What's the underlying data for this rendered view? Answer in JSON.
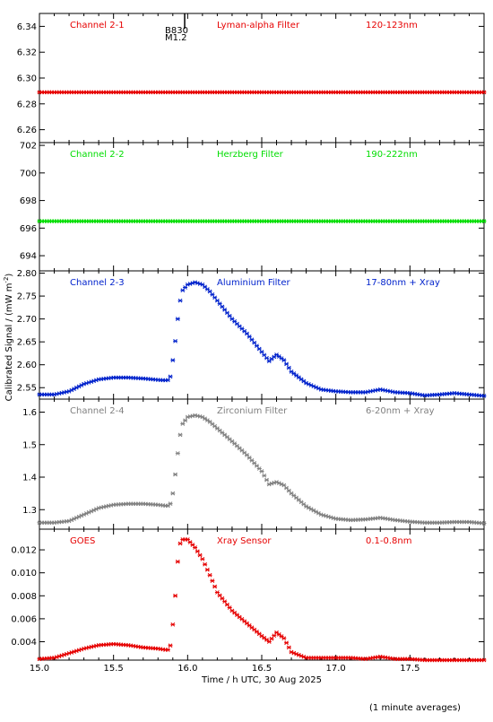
{
  "figure": {
    "ylabel": "Calibrated Signal / (mW m",
    "ylabel_sup": "-2",
    "ylabel_close": ")",
    "xlabel": "Time / h UTC, 30 Aug 2025",
    "footnote": "(1 minute averages)",
    "marker": {
      "label1": "B830",
      "label2": "M1.2",
      "time": 15.98
    }
  },
  "chart_data": [
    {
      "type": "scatter",
      "channel": "Channel 2-1",
      "filter": "Lyman-alpha Filter",
      "band": "120-123nm",
      "color": "#e60000",
      "xlim": [
        15.0,
        18.0
      ],
      "ylim": [
        6.25,
        6.35
      ],
      "yticks": [
        "6.26",
        "6.28",
        "6.30",
        "6.32",
        "6.34"
      ],
      "series": [
        {
          "x": [
            15.0,
            18.0
          ],
          "y": [
            6.289,
            6.289
          ]
        }
      ]
    },
    {
      "type": "scatter",
      "channel": "Channel 2-2",
      "filter": "Herzberg Filter",
      "band": "190-222nm",
      "color": "#00dd00",
      "xlim": [
        15.0,
        18.0
      ],
      "ylim": [
        692.9,
        702.2
      ],
      "yticks": [
        "694",
        "696",
        "698",
        "700",
        "702"
      ],
      "series": [
        {
          "x": [
            15.0,
            18.0
          ],
          "y": [
            696.5,
            696.5
          ]
        }
      ]
    },
    {
      "type": "scatter",
      "channel": "Channel 2-3",
      "filter": "Aluminium Filter",
      "band": "17-80nm + Xray",
      "color": "#0022cc",
      "xlim": [
        15.0,
        18.0
      ],
      "ylim": [
        2.525,
        2.805
      ],
      "yticks": [
        "2.55",
        "2.60",
        "2.65",
        "2.70",
        "2.75",
        "2.80"
      ],
      "series": [
        {
          "x": [
            15.0,
            15.1,
            15.2,
            15.3,
            15.4,
            15.5,
            15.6,
            15.7,
            15.8,
            15.85,
            15.88,
            15.9,
            15.92,
            15.94,
            15.96,
            16.0,
            16.05,
            16.1,
            16.15,
            16.2,
            16.3,
            16.4,
            16.5,
            16.55,
            16.6,
            16.65,
            16.7,
            16.8,
            16.9,
            17.0,
            17.1,
            17.2,
            17.3,
            17.4,
            17.5,
            17.6,
            17.7,
            17.8,
            17.9,
            18.0
          ],
          "y": [
            2.535,
            2.535,
            2.542,
            2.558,
            2.568,
            2.572,
            2.572,
            2.57,
            2.567,
            2.566,
            2.567,
            2.61,
            2.66,
            2.72,
            2.76,
            2.775,
            2.78,
            2.775,
            2.76,
            2.74,
            2.7,
            2.668,
            2.628,
            2.608,
            2.622,
            2.61,
            2.585,
            2.56,
            2.546,
            2.542,
            2.54,
            2.54,
            2.546,
            2.54,
            2.538,
            2.533,
            2.535,
            2.538,
            2.535,
            2.532
          ]
        }
      ]
    },
    {
      "type": "scatter",
      "channel": "Channel 2-4",
      "filter": "Zirconium Filter",
      "band": "6-20nm + Xray",
      "color": "#808080",
      "xlim": [
        15.0,
        18.0
      ],
      "ylim": [
        1.24,
        1.64
      ],
      "yticks": [
        "1.3",
        "1.4",
        "1.5",
        "1.6"
      ],
      "series": [
        {
          "x": [
            15.0,
            15.1,
            15.2,
            15.3,
            15.4,
            15.5,
            15.6,
            15.7,
            15.8,
            15.85,
            15.88,
            15.9,
            15.92,
            15.94,
            15.96,
            16.0,
            16.05,
            16.1,
            16.15,
            16.2,
            16.3,
            16.4,
            16.5,
            16.55,
            16.6,
            16.65,
            16.7,
            16.8,
            16.9,
            17.0,
            17.1,
            17.2,
            17.3,
            17.4,
            17.5,
            17.6,
            17.7,
            17.8,
            17.9,
            18.0
          ],
          "y": [
            1.26,
            1.26,
            1.265,
            1.285,
            1.305,
            1.315,
            1.318,
            1.318,
            1.315,
            1.312,
            1.312,
            1.35,
            1.42,
            1.5,
            1.56,
            1.585,
            1.59,
            1.585,
            1.57,
            1.55,
            1.51,
            1.468,
            1.418,
            1.378,
            1.385,
            1.375,
            1.35,
            1.31,
            1.285,
            1.272,
            1.268,
            1.27,
            1.275,
            1.268,
            1.263,
            1.26,
            1.26,
            1.262,
            1.262,
            1.258
          ]
        }
      ]
    },
    {
      "type": "scatter",
      "channel": "GOES",
      "filter": "Xray Sensor",
      "band": "0.1-0.8nm",
      "color": "#e60000",
      "xlim": [
        15.0,
        18.0
      ],
      "ylim": [
        0.0024,
        0.0138
      ],
      "yticks": [
        "0.004",
        "0.006",
        "0.008",
        "0.010",
        "0.012"
      ],
      "xticks": [
        "15.0",
        "15.5",
        "16.0",
        "16.5",
        "17.0",
        "17.5"
      ],
      "series": [
        {
          "x": [
            15.0,
            15.1,
            15.2,
            15.3,
            15.4,
            15.5,
            15.6,
            15.7,
            15.8,
            15.85,
            15.88,
            15.9,
            15.92,
            15.94,
            15.96,
            16.0,
            16.05,
            16.1,
            16.15,
            16.2,
            16.3,
            16.4,
            16.5,
            16.55,
            16.6,
            16.65,
            16.7,
            16.8,
            16.9,
            17.0,
            17.1,
            17.2,
            17.3,
            17.4,
            17.5,
            17.6,
            17.7,
            17.8,
            17.9,
            18.0
          ],
          "y": [
            0.0025,
            0.0026,
            0.003,
            0.0034,
            0.0037,
            0.0038,
            0.0037,
            0.0035,
            0.0034,
            0.0033,
            0.0033,
            0.0055,
            0.0085,
            0.0122,
            0.0129,
            0.0129,
            0.0122,
            0.0112,
            0.0098,
            0.0083,
            0.0067,
            0.0056,
            0.0045,
            0.004,
            0.0048,
            0.0043,
            0.0031,
            0.0026,
            0.0026,
            0.0026,
            0.0026,
            0.0025,
            0.0027,
            0.0025,
            0.0025,
            0.0024,
            0.0024,
            0.0024,
            0.0024,
            0.0024
          ]
        }
      ]
    }
  ]
}
